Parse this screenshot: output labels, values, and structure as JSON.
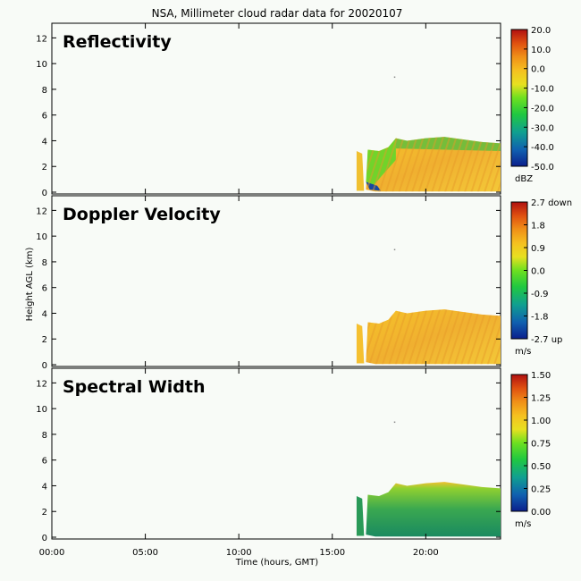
{
  "title": "NSA, Millimeter cloud radar data for 20020107",
  "ylabel": "Height AGL (km)",
  "xlabel": "Time (hours, GMT)",
  "colors": {
    "background": "#f8fbf7",
    "radar_ramp": [
      "#0b1f8c",
      "#1060b0",
      "#10a090",
      "#20c840",
      "#6ee020",
      "#e8e020",
      "#f5c020",
      "#f09018",
      "#e05010",
      "#b01010"
    ]
  },
  "chart_data": [
    {
      "type": "heatmap",
      "title": "Reflectivity",
      "x_ticks": [
        "00:00",
        "05:00",
        "10:00",
        "15:00",
        "20:00"
      ],
      "x_range": [
        0,
        24
      ],
      "y_ticks": [
        "0",
        "2",
        "4",
        "6",
        "8",
        "10",
        "12"
      ],
      "y_range": [
        0,
        13
      ],
      "colorbar": {
        "labels": [
          "20.0",
          "10.0",
          "0.0",
          "-10.0",
          "-20.0",
          "-30.0",
          "-40.0",
          "-50.0"
        ],
        "unit": "dBZ"
      }
    },
    {
      "type": "heatmap",
      "title": "Doppler Velocity",
      "x_ticks": [
        "00:00",
        "05:00",
        "10:00",
        "15:00",
        "20:00"
      ],
      "x_range": [
        0,
        24
      ],
      "y_ticks": [
        "0",
        "2",
        "4",
        "6",
        "8",
        "10",
        "12"
      ],
      "y_range": [
        0,
        13
      ],
      "colorbar": {
        "labels": [
          "2.7 down",
          "1.8",
          "0.9",
          "0.0",
          "-0.9",
          "-1.8",
          "-2.7 up"
        ],
        "unit": "m/s"
      }
    },
    {
      "type": "heatmap",
      "title": "Spectral Width",
      "x_ticks": [
        "00:00",
        "05:00",
        "10:00",
        "15:00",
        "20:00"
      ],
      "x_range": [
        0,
        24
      ],
      "y_ticks": [
        "0",
        "2",
        "4",
        "6",
        "8",
        "10",
        "12"
      ],
      "y_range": [
        0,
        13
      ],
      "colorbar": {
        "labels": [
          "1.50",
          "1.25",
          "1.00",
          "0.75",
          "0.50",
          "0.25",
          "0.00"
        ],
        "unit": "m/s"
      }
    }
  ]
}
